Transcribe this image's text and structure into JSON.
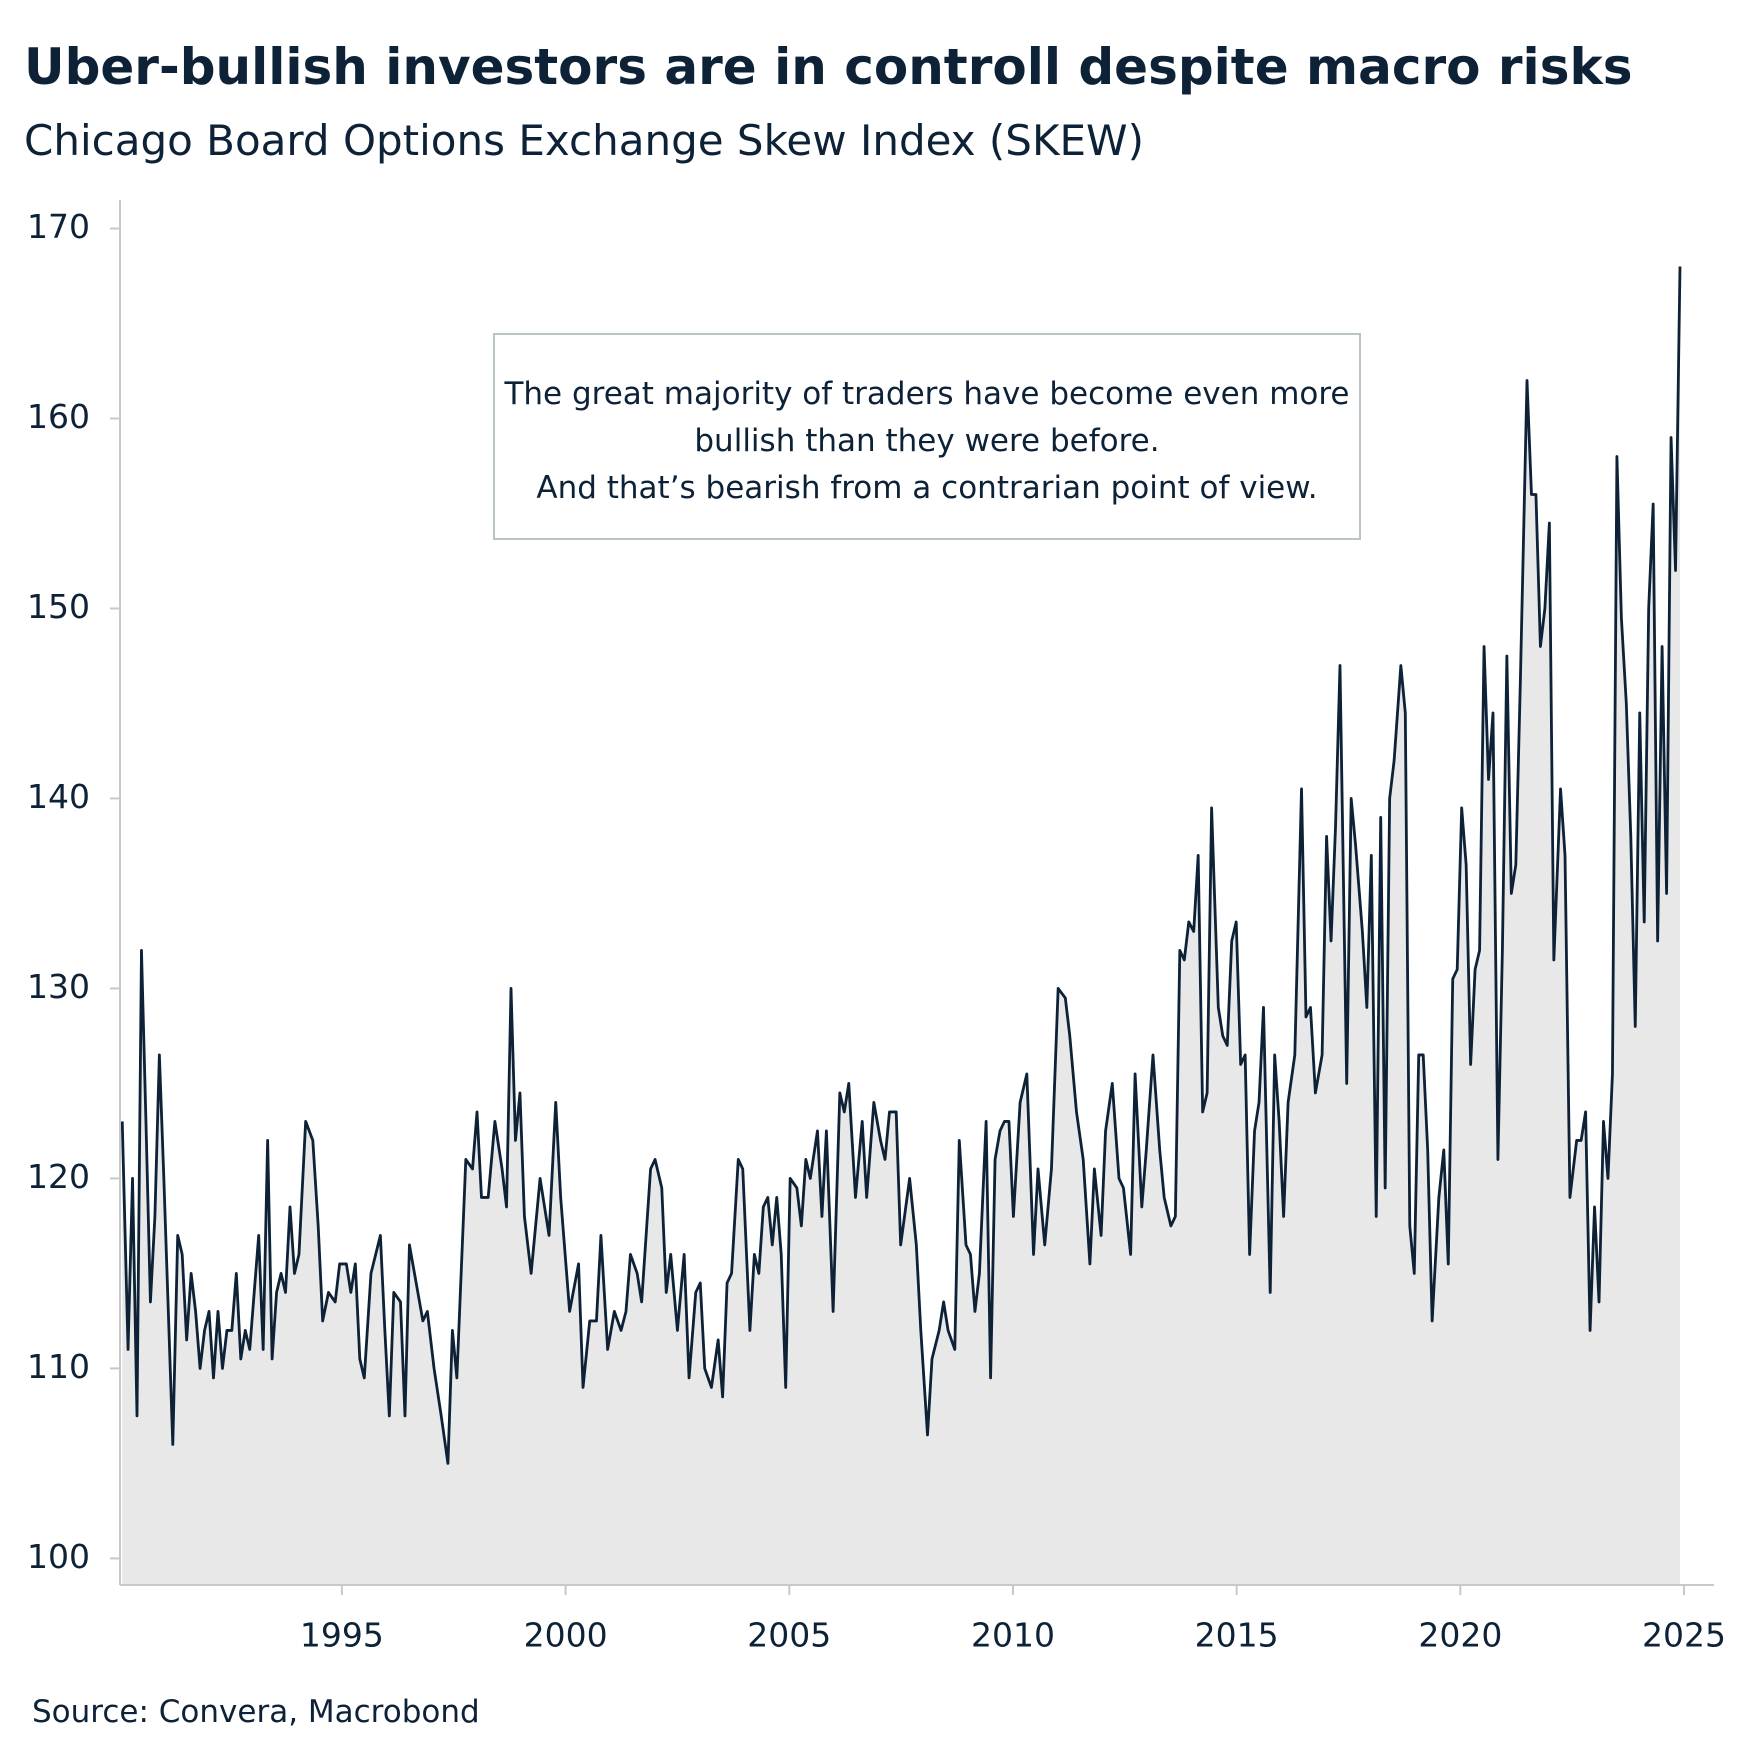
{
  "chart_data": {
    "type": "area",
    "title": "Uber-bullish investors are in controll despite macro risks",
    "subtitle": "Chicago Board Options Exchange Skew Index (SKEW)",
    "annotation": [
      "The great majority of traders have become even more",
      "bullish than they were before.",
      "And that’s bearish from a contrarian point of view."
    ],
    "source": "Source: Convera, Macrobond",
    "color": "#0d2137",
    "fill_color": "#e8e8e8",
    "xlim": [
      1990.04,
      2025.67
    ],
    "xticks": [
      1995,
      2000,
      2005,
      2010,
      2015,
      2020,
      2025
    ],
    "ylim": [
      98.6,
      171.5
    ],
    "yticks": [
      100,
      110,
      120,
      130,
      140,
      150,
      160,
      170
    ],
    "x": [
      1990.09,
      1990.22,
      1990.32,
      1990.42,
      1990.52,
      1990.62,
      1990.72,
      1990.82,
      1990.92,
      1991.02,
      1991.12,
      1991.22,
      1991.33,
      1991.43,
      1991.53,
      1991.63,
      1991.73,
      1991.83,
      1991.93,
      1992.03,
      1992.13,
      1992.23,
      1992.33,
      1992.43,
      1992.54,
      1992.64,
      1992.74,
      1992.84,
      1992.94,
      1993.04,
      1993.14,
      1993.24,
      1993.34,
      1993.44,
      1993.54,
      1993.64,
      1993.74,
      1993.84,
      1993.94,
      1994.04,
      1994.19,
      1994.35,
      1994.47,
      1994.57,
      1994.7,
      1994.85,
      1994.95,
      1995.1,
      1995.2,
      1995.3,
      1995.4,
      1995.5,
      1995.65,
      1995.86,
      1995.96,
      1996.06,
      1996.16,
      1996.31,
      1996.41,
      1996.51,
      1996.66,
      1996.81,
      1996.91,
      1997.06,
      1997.22,
      1997.37,
      1997.47,
      1997.57,
      1997.77,
      1997.92,
      1998.02,
      1998.12,
      1998.27,
      1998.42,
      1998.58,
      1998.68,
      1998.78,
      1998.88,
      1998.98,
      1999.08,
      1999.23,
      1999.43,
      1999.63,
      1999.78,
      1999.89,
      2000.09,
      2000.29,
      2000.39,
      2000.54,
      2000.69,
      2000.79,
      2000.94,
      2001.09,
      2001.24,
      2001.35,
      2001.45,
      2001.6,
      2001.7,
      2001.9,
      2002.0,
      2002.15,
      2002.25,
      2002.35,
      2002.5,
      2002.65,
      2002.76,
      2002.91,
      2003.01,
      2003.11,
      2003.26,
      2003.41,
      2003.51,
      2003.61,
      2003.71,
      2003.86,
      2003.96,
      2004.12,
      2004.22,
      2004.32,
      2004.42,
      2004.52,
      2004.62,
      2004.72,
      2004.82,
      2004.92,
      2005.02,
      2005.17,
      2005.27,
      2005.37,
      2005.47,
      2005.63,
      2005.73,
      2005.83,
      2005.98,
      2006.13,
      2006.23,
      2006.33,
      2006.48,
      2006.63,
      2006.73,
      2006.89,
      2007.04,
      2007.14,
      2007.24,
      2007.39,
      2007.49,
      2007.69,
      2007.84,
      2007.94,
      2008.09,
      2008.19,
      2008.35,
      2008.45,
      2008.55,
      2008.7,
      2008.8,
      2008.95,
      2009.05,
      2009.15,
      2009.25,
      2009.4,
      2009.5,
      2009.6,
      2009.71,
      2009.81,
      2009.91,
      2010.01,
      2010.16,
      2010.31,
      2010.46,
      2010.56,
      2010.71,
      2010.86,
      2011.01,
      2011.17,
      2011.27,
      2011.42,
      2011.57,
      2011.72,
      2011.82,
      2011.97,
      2012.07,
      2012.22,
      2012.37,
      2012.47,
      2012.63,
      2012.73,
      2012.88,
      2012.98,
      2013.13,
      2013.28,
      2013.38,
      2013.53,
      2013.63,
      2013.73,
      2013.83,
      2013.93,
      2014.04,
      2014.14,
      2014.24,
      2014.34,
      2014.44,
      2014.59,
      2014.69,
      2014.79,
      2014.89,
      2014.99,
      2015.09,
      2015.19,
      2015.29,
      2015.4,
      2015.5,
      2015.6,
      2015.75,
      2015.85,
      2015.95,
      2016.05,
      2016.15,
      2016.3,
      2016.45,
      2016.55,
      2016.65,
      2016.76,
      2016.91,
      2017.01,
      2017.11,
      2017.21,
      2017.31,
      2017.46,
      2017.56,
      2017.66,
      2017.81,
      2017.91,
      2018.01,
      2018.12,
      2018.22,
      2018.32,
      2018.42,
      2018.52,
      2018.67,
      2018.77,
      2018.87,
      2018.97,
      2019.07,
      2019.17,
      2019.27,
      2019.37,
      2019.52,
      2019.63,
      2019.73,
      2019.83,
      2019.93,
      2020.03,
      2020.13,
      2020.23,
      2020.33,
      2020.43,
      2020.53,
      2020.63,
      2020.73,
      2020.84,
      2020.94,
      2021.04,
      2021.14,
      2021.24,
      2021.34,
      2021.49,
      2021.59,
      2021.69,
      2021.79,
      2021.89,
      2021.99,
      2022.09,
      2022.24,
      2022.34,
      2022.45,
      2022.6,
      2022.7,
      2022.8,
      2022.9,
      2023.0,
      2023.1,
      2023.2,
      2023.3,
      2023.4,
      2023.5,
      2023.6,
      2023.71,
      2023.81,
      2023.91,
      2024.01,
      2024.11,
      2024.21,
      2024.31,
      2024.41,
      2024.51,
      2024.61,
      2024.71,
      2024.81,
      2024.91
    ],
    "values": [
      123,
      111,
      120,
      107.5,
      132,
      123,
      113.5,
      118,
      126.5,
      120,
      113,
      106,
      117,
      116,
      111.5,
      115,
      113,
      110,
      112,
      113,
      109.5,
      113,
      110,
      112,
      112,
      115,
      110.5,
      112,
      111,
      114,
      117,
      111,
      122,
      110.5,
      114,
      115,
      114,
      118.5,
      115,
      116,
      123,
      122,
      117.5,
      112.5,
      114,
      113.5,
      115.5,
      115.5,
      114,
      115.5,
      110.5,
      109.5,
      115,
      117,
      112,
      107.5,
      114,
      113.5,
      107.5,
      116.5,
      114.5,
      112.5,
      113,
      110,
      107.5,
      105,
      112,
      109.5,
      121,
      120.5,
      123.5,
      119,
      119,
      123,
      120.5,
      118.5,
      130,
      122,
      124.5,
      118,
      115,
      120,
      117,
      124,
      119,
      113,
      115.5,
      109,
      112.5,
      112.5,
      117,
      111,
      113,
      112,
      113,
      116,
      115,
      113.5,
      120.5,
      121,
      119.5,
      114,
      116,
      112,
      116,
      109.5,
      114,
      114.5,
      110,
      109,
      111.5,
      108.5,
      114.5,
      115,
      121,
      120.5,
      112,
      116,
      115,
      118.5,
      119,
      116.5,
      119,
      116,
      109,
      120,
      119.5,
      117.5,
      121,
      120,
      122.5,
      118,
      122.5,
      113,
      124.5,
      123.5,
      125,
      119,
      123,
      119,
      124,
      122,
      121,
      123.5,
      123.5,
      116.5,
      120,
      116.5,
      112,
      106.5,
      110.5,
      112,
      113.5,
      112,
      111,
      122,
      116.5,
      116,
      113,
      115,
      123,
      109.5,
      121,
      122.5,
      123,
      123,
      118,
      124,
      125.5,
      116,
      120.5,
      116.5,
      120.5,
      130,
      129.5,
      127.5,
      123.5,
      121,
      115.5,
      120.5,
      117,
      122.5,
      125,
      120,
      119.5,
      116,
      125.5,
      118.5,
      121.5,
      126.5,
      121.5,
      119,
      117.5,
      118,
      132,
      131.5,
      133.5,
      133,
      137,
      123.5,
      124.5,
      139.5,
      129,
      127.5,
      127,
      132.5,
      133.5,
      126,
      126.5,
      116,
      122.5,
      124,
      129,
      114,
      126.5,
      123,
      118,
      124,
      126.5,
      140.5,
      128.5,
      129,
      124.5,
      126.5,
      138,
      132.5,
      138.5,
      147,
      125,
      140,
      137.5,
      133,
      129,
      137,
      118,
      139,
      119.5,
      140,
      142,
      147,
      144.5,
      117.5,
      115,
      126.5,
      126.5,
      121.5,
      112.5,
      119,
      121.5,
      115.5,
      130.5,
      131,
      139.5,
      136.5,
      126,
      131,
      132,
      148,
      141,
      144.5,
      121,
      132,
      147.5,
      135,
      136.5,
      146,
      162,
      156,
      156,
      148,
      150,
      154.5,
      131.5,
      140.5,
      137,
      119,
      122,
      122,
      123.5,
      112,
      118.5,
      113.5,
      123,
      120,
      125.5,
      158,
      149.5,
      145,
      138,
      128,
      144.5,
      133.5,
      150,
      155.5,
      132.5,
      148,
      135,
      159,
      152,
      168
    ]
  }
}
